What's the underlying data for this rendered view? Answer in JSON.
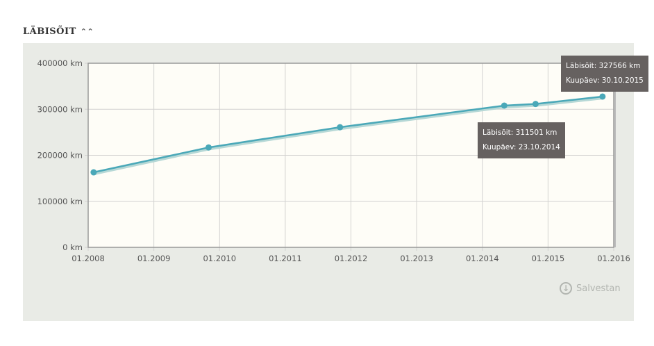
{
  "header": {
    "title": "LÄBISÕIT",
    "collapse_icon": "double-chevron-up-icon"
  },
  "chart_data": {
    "type": "line",
    "title": "",
    "xlabel": "",
    "ylabel": "",
    "x_ticks": [
      "01.2008",
      "01.2009",
      "01.2010",
      "01.2011",
      "01.2012",
      "01.2013",
      "01.2014",
      "01.2015",
      "01.2016"
    ],
    "y_ticks": [
      "0 km",
      "100000 km",
      "200000 km",
      "300000 km",
      "400000 km"
    ],
    "ylim": [
      0,
      400000
    ],
    "xlim": [
      "2008-01",
      "2016-01"
    ],
    "grid": true,
    "series": [
      {
        "color": "#4aa8b8",
        "points": [
          {
            "date": "2008-02",
            "value": 163000
          },
          {
            "date": "2009-11",
            "value": 217000
          },
          {
            "date": "2011-11",
            "value": 261000
          },
          {
            "date": "2014-05",
            "value": 308000
          },
          {
            "date": "2014-10-23",
            "value": 311501
          },
          {
            "date": "2015-10-30",
            "value": 327566
          }
        ]
      }
    ],
    "tooltips": [
      {
        "line1": "Läbisõit:  327566 km",
        "line2": "Kuupäev: 30.10.2015"
      },
      {
        "line1": "Läbisõit:  311501 km",
        "line2": "Kuupäev: 23.10.2014"
      }
    ]
  },
  "footer": {
    "save_label": "Salvestan",
    "save_icon": "download-arrow-icon"
  }
}
